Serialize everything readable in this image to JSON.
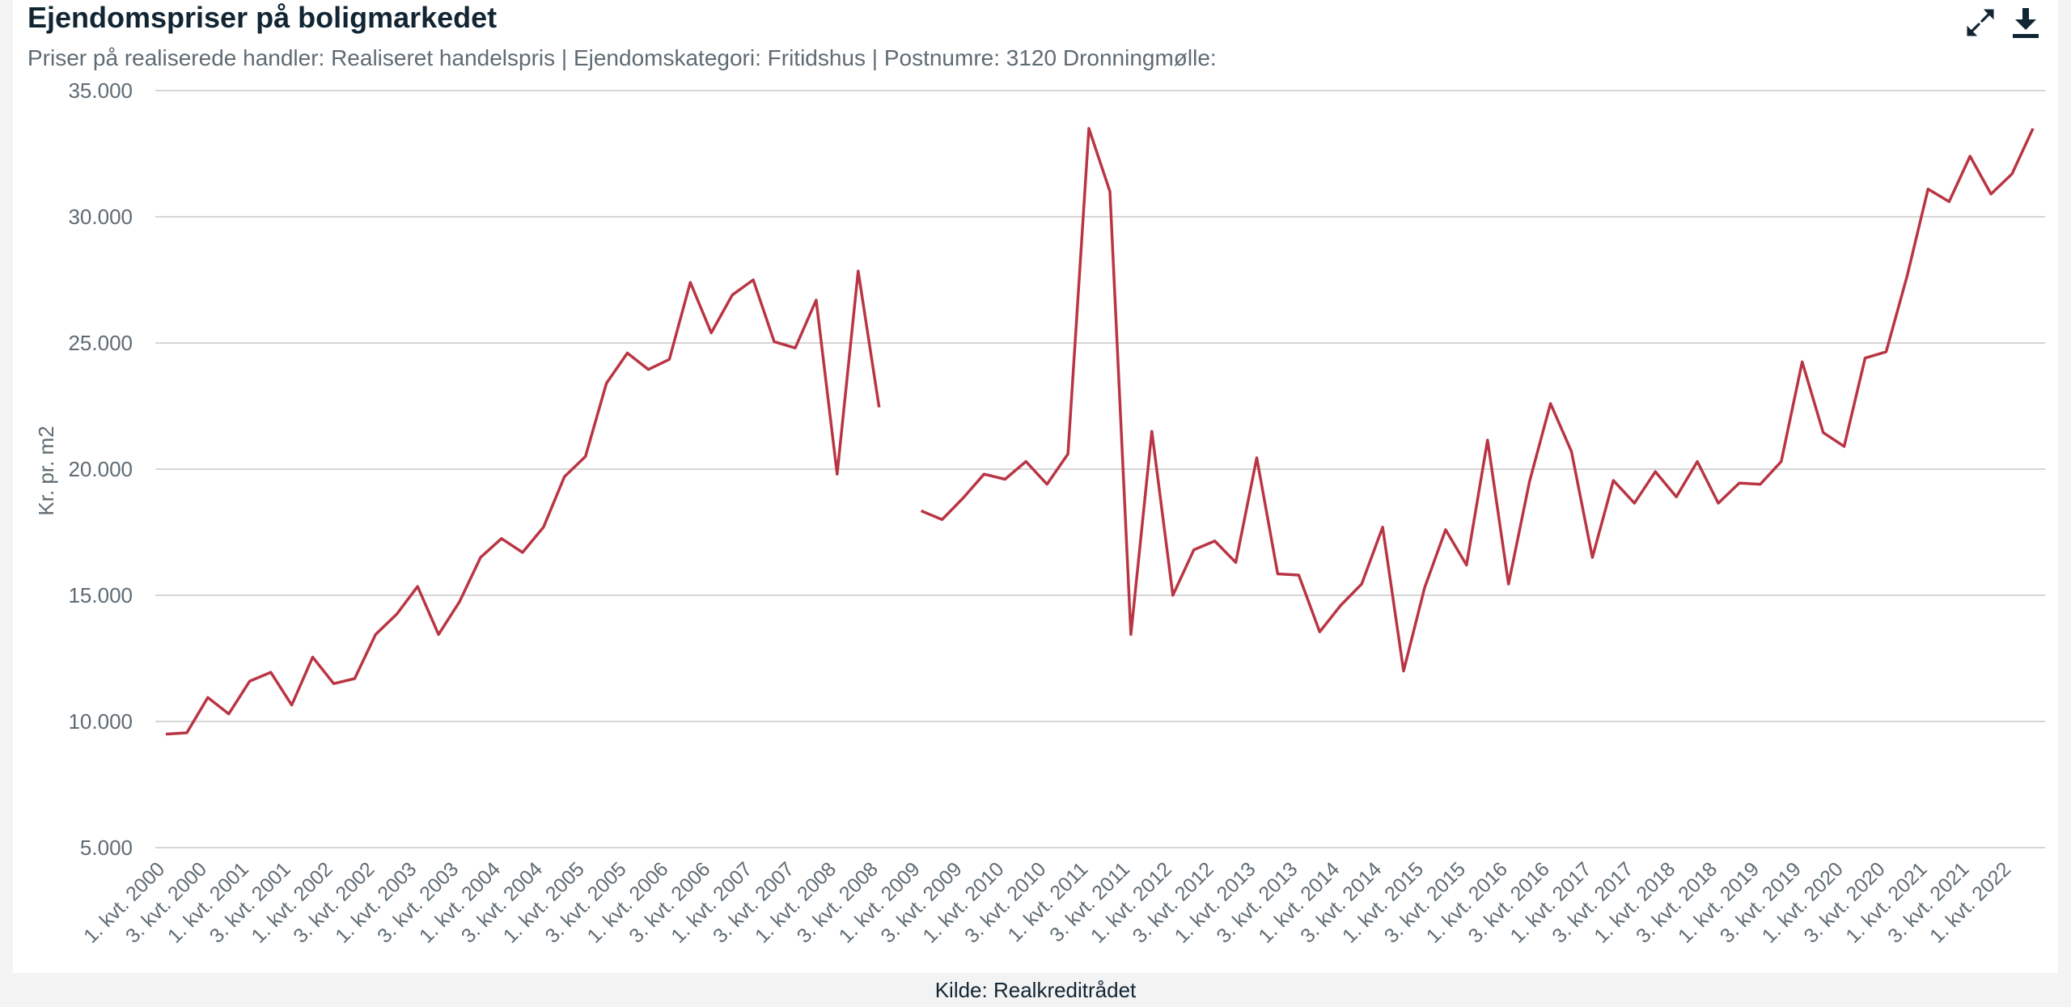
{
  "header": {
    "title": "Ejendomspriser på boligmarkedet",
    "subtitle": "Priser på realiserede handler: Realiseret handelspris | Ejendomskategori: Fritidshus | Postnumre: 3120 Dronningmølle:"
  },
  "toolbar": {
    "expand_icon": "expand-arrows-icon",
    "download_icon": "download-icon"
  },
  "footer": {
    "source": "Kilde: Realkreditrådet"
  },
  "colors": {
    "line": "#b93544",
    "grid": "#c8c8c8",
    "axis_text": "#5f6b73",
    "title": "#112533"
  },
  "chart_data": {
    "type": "line",
    "title": "Ejendomspriser på boligmarkedet",
    "ylabel": "Kr. pr. m2",
    "xlabel": "",
    "ylim": [
      5000,
      35000
    ],
    "yticks": [
      5000,
      10000,
      15000,
      20000,
      25000,
      30000,
      35000
    ],
    "ytick_labels": [
      "5.000",
      "10.000",
      "15.000",
      "20.000",
      "25.000",
      "30.000",
      "35.000"
    ],
    "grid": true,
    "x_tick_labels": [
      "1. kvt. 2000",
      "3. kvt. 2000",
      "1. kvt. 2001",
      "3. kvt. 2001",
      "1. kvt. 2002",
      "3. kvt. 2002",
      "1. kvt. 2003",
      "3. kvt. 2003",
      "1. kvt. 2004",
      "3. kvt. 2004",
      "1. kvt. 2005",
      "3. kvt. 2005",
      "1. kvt. 2006",
      "3. kvt. 2006",
      "1. kvt. 2007",
      "3. kvt. 2007",
      "1. kvt. 2008",
      "3. kvt. 2008",
      "1. kvt. 2009",
      "3. kvt. 2009",
      "1. kvt. 2010",
      "3. kvt. 2010",
      "1. kvt. 2011",
      "3. kvt. 2011",
      "1. kvt. 2012",
      "3. kvt. 2012",
      "1. kvt. 2013",
      "3. kvt. 2013",
      "1. kvt. 2014",
      "3. kvt. 2014",
      "1. kvt. 2015",
      "3. kvt. 2015",
      "1. kvt. 2016",
      "3. kvt. 2016",
      "1. kvt. 2017",
      "3. kvt. 2017",
      "1. kvt. 2018",
      "3. kvt. 2018",
      "1. kvt. 2019",
      "3. kvt. 2019",
      "1. kvt. 2020",
      "3. kvt. 2020",
      "1. kvt. 2021",
      "3. kvt. 2021",
      "1. kvt. 2022"
    ],
    "series": [
      {
        "name": "",
        "values": [
          9500,
          9550,
          10950,
          10300,
          11600,
          11950,
          10650,
          12550,
          11500,
          11700,
          13450,
          14250,
          15350,
          13450,
          14750,
          16500,
          17250,
          16700,
          17700,
          19700,
          20500,
          23400,
          24600,
          23950,
          24350,
          27400,
          25400,
          26900,
          27500,
          25050,
          24800,
          26700,
          19800,
          27850,
          22450,
          null,
          18350,
          18000,
          18850,
          19800,
          19600,
          20300,
          19400,
          20600,
          33500,
          31000,
          13450,
          21500,
          15000,
          16800,
          17150,
          16300,
          20450,
          15850,
          15800,
          13550,
          14600,
          15450,
          17700,
          12000,
          15300,
          17600,
          16200,
          21150,
          15450,
          19500,
          22600,
          20700,
          16500,
          19550,
          18650,
          19900,
          18900,
          20300,
          18650,
          19450,
          19400,
          20300,
          24250,
          21450,
          20900,
          24400,
          24650,
          27650,
          31100,
          30600,
          32400,
          30900,
          31700,
          33500
        ]
      }
    ]
  }
}
